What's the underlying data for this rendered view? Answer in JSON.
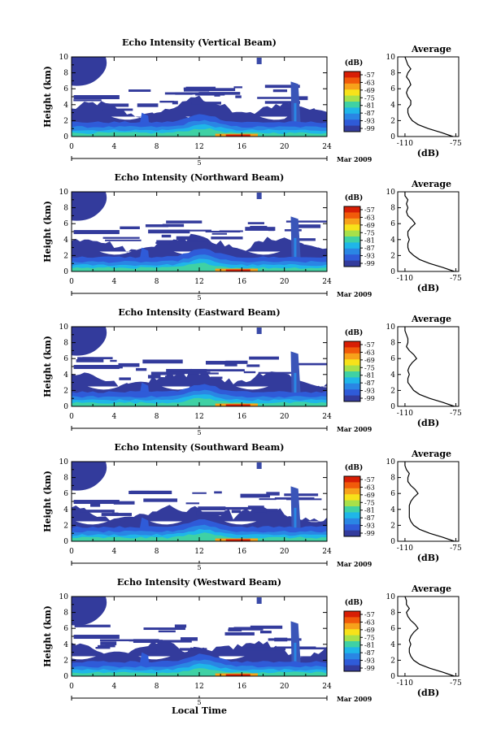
{
  "figure": {
    "xlabel": "Local Time",
    "date_label": "Mar 2009",
    "date_marker": "5",
    "ylabel": "Height (km)",
    "avg_title": "Average",
    "avg_xlabel": "(dB)",
    "colorbar_unit": "(dB)"
  },
  "colorbar": {
    "ticks": [
      "-57",
      "-63",
      "-69",
      "-75",
      "-81",
      "-87",
      "-93",
      "-99"
    ],
    "colors": [
      "#d81e05",
      "#f15a0a",
      "#f7a21b",
      "#f7e21a",
      "#a7e04a",
      "#3fd1a4",
      "#1fb6e8",
      "#2a86e4",
      "#2f5bd8",
      "#333b9c"
    ]
  },
  "chart_data": [
    {
      "type": "heatmap",
      "title": "Echo Intensity (Vertical Beam)",
      "xlabel": "",
      "ylabel": "Height (km)",
      "xlim": [
        0,
        24
      ],
      "ylim": [
        0,
        10
      ],
      "xticks": [
        0,
        4,
        8,
        12,
        16,
        20,
        24
      ],
      "yticks": [
        0,
        2,
        4,
        6,
        8,
        10
      ],
      "average_profile": {
        "xlim": [
          -115,
          -73
        ],
        "xticks": [
          -110,
          -75
        ],
        "height": [
          0,
          0.5,
          1,
          1.5,
          2,
          2.5,
          3,
          3.5,
          4,
          4.5,
          5,
          5.5,
          6,
          6.5,
          7,
          7.5,
          8,
          8.5,
          9,
          9.5,
          10
        ],
        "dB": [
          -77,
          -85,
          -94,
          -101,
          -105,
          -107,
          -108,
          -108,
          -106,
          -106,
          -108,
          -109,
          -108,
          -106,
          -107,
          -109,
          -108,
          -106,
          -108,
          -109,
          -110
        ]
      }
    },
    {
      "type": "heatmap",
      "title": "Echo Intensity (Northward Beam)",
      "xlabel": "",
      "ylabel": "Height (km)",
      "xlim": [
        0,
        24
      ],
      "ylim": [
        0,
        10
      ],
      "xticks": [
        0,
        4,
        8,
        12,
        16,
        20,
        24
      ],
      "yticks": [
        0,
        2,
        4,
        6,
        8,
        10
      ],
      "average_profile": {
        "xlim": [
          -115,
          -73
        ],
        "xticks": [
          -110,
          -75
        ],
        "height": [
          0,
          0.5,
          1,
          1.5,
          2,
          2.5,
          3,
          3.5,
          4,
          4.5,
          5,
          5.5,
          6,
          6.5,
          7,
          7.5,
          8,
          8.5,
          9,
          9.5,
          10
        ],
        "dB": [
          -76,
          -84,
          -93,
          -100,
          -104,
          -107,
          -108,
          -108,
          -107,
          -108,
          -108,
          -106,
          -103,
          -105,
          -108,
          -109,
          -108,
          -109,
          -108,
          -110,
          -110
        ]
      }
    },
    {
      "type": "heatmap",
      "title": "Echo Intensity (Eastward Beam)",
      "xlabel": "",
      "ylabel": "Height (km)",
      "xlim": [
        0,
        24
      ],
      "ylim": [
        0,
        10
      ],
      "xticks": [
        0,
        4,
        8,
        12,
        16,
        20,
        24
      ],
      "yticks": [
        0,
        2,
        4,
        6,
        8,
        10
      ],
      "average_profile": {
        "xlim": [
          -115,
          -73
        ],
        "xticks": [
          -110,
          -75
        ],
        "height": [
          0,
          0.5,
          1,
          1.5,
          2,
          2.5,
          3,
          3.5,
          4,
          4.5,
          5,
          5.5,
          6,
          6.5,
          7,
          7.5,
          8,
          8.5,
          9,
          9.5,
          10
        ],
        "dB": [
          -76,
          -84,
          -93,
          -100,
          -104,
          -106,
          -108,
          -108,
          -107,
          -108,
          -107,
          -105,
          -102,
          -104,
          -107,
          -109,
          -108,
          -108,
          -109,
          -110,
          -110
        ]
      }
    },
    {
      "type": "heatmap",
      "title": "Echo Intensity (Southward Beam)",
      "xlabel": "",
      "ylabel": "Height (km)",
      "xlim": [
        0,
        24
      ],
      "ylim": [
        0,
        10
      ],
      "xticks": [
        0,
        4,
        8,
        12,
        16,
        20,
        24
      ],
      "yticks": [
        0,
        2,
        4,
        6,
        8,
        10
      ],
      "average_profile": {
        "xlim": [
          -115,
          -73
        ],
        "xticks": [
          -110,
          -75
        ],
        "height": [
          0,
          0.5,
          1,
          1.5,
          2,
          2.5,
          3,
          3.5,
          4,
          4.5,
          5,
          5.5,
          6,
          6.5,
          7,
          7.5,
          8,
          8.5,
          9,
          9.5,
          10
        ],
        "dB": [
          -76,
          -84,
          -93,
          -100,
          -104,
          -106,
          -107,
          -107,
          -107,
          -107,
          -106,
          -104,
          -101,
          -103,
          -106,
          -108,
          -108,
          -107,
          -109,
          -110,
          -110
        ]
      }
    },
    {
      "type": "heatmap",
      "title": "Echo Intensity (Westward Beam)",
      "xlabel": "Local Time",
      "ylabel": "Height (km)",
      "xlim": [
        0,
        24
      ],
      "ylim": [
        0,
        10
      ],
      "xticks": [
        0,
        4,
        8,
        12,
        16,
        20,
        24
      ],
      "yticks": [
        0,
        2,
        4,
        6,
        8,
        10
      ],
      "average_profile": {
        "xlim": [
          -115,
          -73
        ],
        "xticks": [
          -110,
          -75
        ],
        "height": [
          0,
          0.5,
          1,
          1.5,
          2,
          2.5,
          3,
          3.5,
          4,
          4.5,
          5,
          5.5,
          6,
          6.5,
          7,
          7.5,
          8,
          8.5,
          9,
          9.5,
          10
        ],
        "dB": [
          -76,
          -84,
          -93,
          -100,
          -104,
          -106,
          -107,
          -107,
          -106,
          -107,
          -106,
          -104,
          -101,
          -103,
          -106,
          -108,
          -109,
          -107,
          -109,
          -109,
          -110
        ]
      }
    }
  ]
}
